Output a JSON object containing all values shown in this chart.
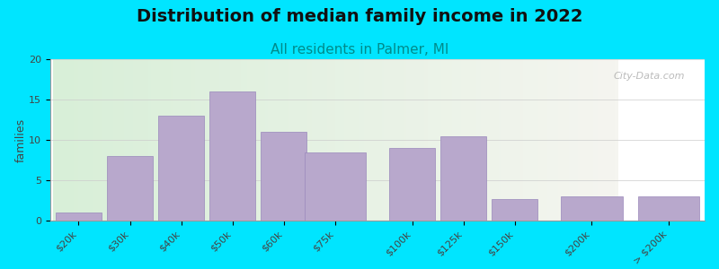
{
  "title": "Distribution of median family income in 2022",
  "subtitle": "All residents in Palmer, MI",
  "ylabel": "families",
  "categories": [
    "$20k",
    "$30k",
    "$40k",
    "$50k",
    "$60k",
    "$75k",
    "$100k",
    "$125k",
    "$150k",
    "$200k",
    "> $200k"
  ],
  "values": [
    1,
    8,
    13,
    16,
    11,
    8.5,
    9,
    10.5,
    2.7,
    3,
    3
  ],
  "bar_color": "#b8a8cc",
  "bar_edge_color": "#9988bb",
  "background_color": "#00e5ff",
  "plot_bg_left": "#d8efd8",
  "plot_bg_right": "#f5f5f0",
  "title_fontsize": 14,
  "subtitle_fontsize": 11,
  "ylabel_fontsize": 9,
  "tick_fontsize": 8,
  "ylim": [
    0,
    20
  ],
  "yticks": [
    0,
    5,
    10,
    15,
    20
  ],
  "watermark": "City-Data.com",
  "subtitle_color": "#008b8b",
  "title_color": "#111111",
  "grid_color": "#cccccc"
}
